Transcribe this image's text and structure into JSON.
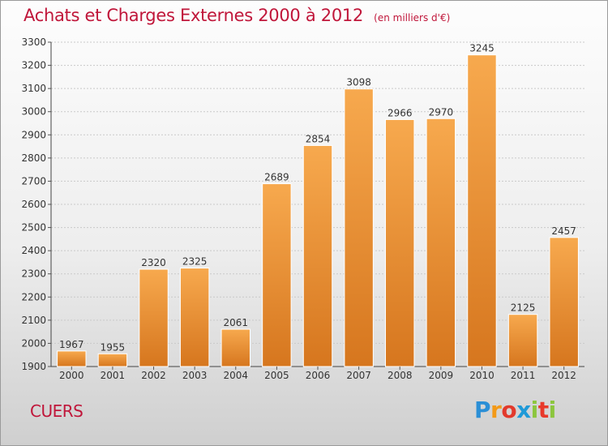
{
  "title": "Achats et Charges Externes 2000 à 2012",
  "subtitle": "(en milliers d'€)",
  "commune": "CUERS",
  "logo": {
    "p": "P",
    "r": "r",
    "o": "o",
    "x": "x",
    "i1": "i",
    "t": "t",
    "i2": "i"
  },
  "colors": {
    "bar_top": "#f7a94e",
    "bar_bottom": "#d6761e",
    "title": "#c0163a"
  },
  "chart_data": {
    "type": "bar",
    "categories": [
      "2000",
      "2001",
      "2002",
      "2003",
      "2004",
      "2005",
      "2006",
      "2007",
      "2008",
      "2009",
      "2010",
      "2011",
      "2012"
    ],
    "values": [
      1967,
      1955,
      2320,
      2325,
      2061,
      2689,
      2854,
      3098,
      2966,
      2970,
      3245,
      2125,
      2457
    ],
    "yticks": [
      1900,
      2000,
      2100,
      2200,
      2300,
      2400,
      2500,
      2600,
      2700,
      2800,
      2900,
      3000,
      3100,
      3200,
      3300
    ],
    "ylim": [
      1900,
      3300
    ],
    "grid": true
  }
}
